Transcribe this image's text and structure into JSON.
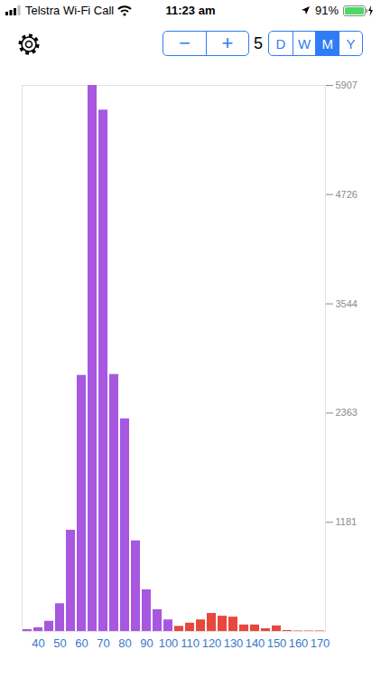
{
  "status_bar": {
    "carrier": "Telstra Wi-Fi Call",
    "time": "11:23 am",
    "battery": "91%"
  },
  "toolbar": {
    "stepper": [
      "−",
      "+"
    ],
    "bin_size": 5,
    "periods": [
      "D",
      "W",
      "M",
      "Y"
    ],
    "selected_period": "M"
  },
  "chart_data": {
    "type": "histogram",
    "bins": [
      32.5,
      37.5,
      42.5,
      47.5,
      52.5,
      57.5,
      62.5,
      67.5,
      72.5,
      77.5,
      82.5,
      87.5,
      92.5,
      97.5,
      102.5,
      107.5,
      112.5,
      117.5,
      122.5,
      127.5,
      132.5,
      137.5,
      142.5,
      147.5,
      152.5,
      157.5,
      162.5,
      167.5,
      172.5
    ],
    "values": [
      20,
      40,
      110,
      300,
      1095,
      2770,
      5907,
      5640,
      2780,
      2300,
      980,
      450,
      235,
      125,
      55,
      90,
      125,
      195,
      165,
      155,
      70,
      70,
      30,
      60,
      10,
      5,
      5,
      5
    ],
    "colors": [
      "#a757e0",
      "#a757e0",
      "#a757e0",
      "#a757e0",
      "#a757e0",
      "#a757e0",
      "#a757e0",
      "#a757e0",
      "#a757e0",
      "#a757e0",
      "#a757e0",
      "#a757e0",
      "#a757e0",
      "#a757e0",
      "#e8473c",
      "#e8473c",
      "#e8473c",
      "#e8473c",
      "#e8473c",
      "#e8473c",
      "#e8473c",
      "#e8473c",
      "#e8473c",
      "#e8473c",
      "#e8473c",
      "#e8473c",
      "#e8473c",
      "#e8473c"
    ],
    "xlim": [
      32.5,
      172.5
    ],
    "xticks": [
      40,
      50,
      60,
      70,
      80,
      90,
      100,
      110,
      120,
      130,
      140,
      150,
      160,
      170
    ],
    "ylim": [
      0,
      5907
    ],
    "yticks": [
      1181,
      2363,
      3544,
      4726,
      5907
    ]
  }
}
